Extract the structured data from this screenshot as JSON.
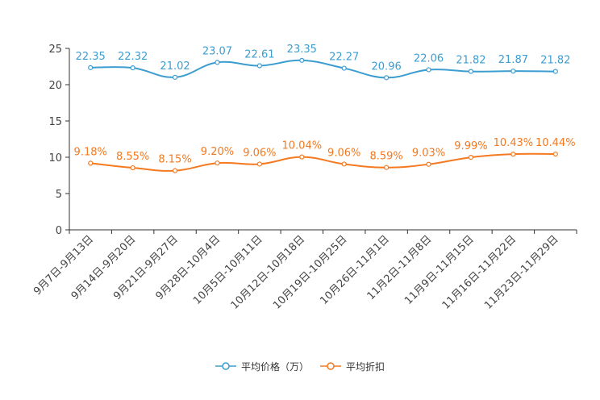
{
  "chart_data": {
    "type": "line",
    "title": "",
    "xlabel": "",
    "ylabel": "",
    "ylim": [
      0,
      25
    ],
    "yticks": [
      0,
      5,
      10,
      15,
      20,
      25
    ],
    "categories": [
      "9月7日-9月13日",
      "9月14日-9月20日",
      "9月21日-9月27日",
      "9月28日-10月4日",
      "10月5日-10月11日",
      "10月12日-10月18日",
      "10月19日-10月25日",
      "10月26日-11月1日",
      "11月2日-11月8日",
      "11月9日-11月15日",
      "11月16日-11月22日",
      "11月23日-11月29日"
    ],
    "series": [
      {
        "name": "平均价格（万）",
        "color": "#3c9dd0",
        "values": [
          22.35,
          22.32,
          21.02,
          23.07,
          22.61,
          23.35,
          22.27,
          20.96,
          22.06,
          21.82,
          21.87,
          21.82
        ],
        "labels": [
          "22.35",
          "22.32",
          "21.02",
          "23.07",
          "22.61",
          "23.35",
          "22.27",
          "20.96",
          "22.06",
          "21.82",
          "21.87",
          "21.82"
        ]
      },
      {
        "name": "平均折扣",
        "color": "#f47920",
        "values": [
          9.18,
          8.55,
          8.15,
          9.2,
          9.06,
          10.04,
          9.06,
          8.59,
          9.03,
          9.99,
          10.43,
          10.44
        ],
        "labels": [
          "9.18%",
          "8.55%",
          "8.15%",
          "9.20%",
          "9.06%",
          "10.04%",
          "9.06%",
          "8.59%",
          "9.03%",
          "9.99%",
          "10.43%",
          "10.44%"
        ]
      }
    ],
    "grid": false,
    "legend_position": "bottom-center"
  }
}
